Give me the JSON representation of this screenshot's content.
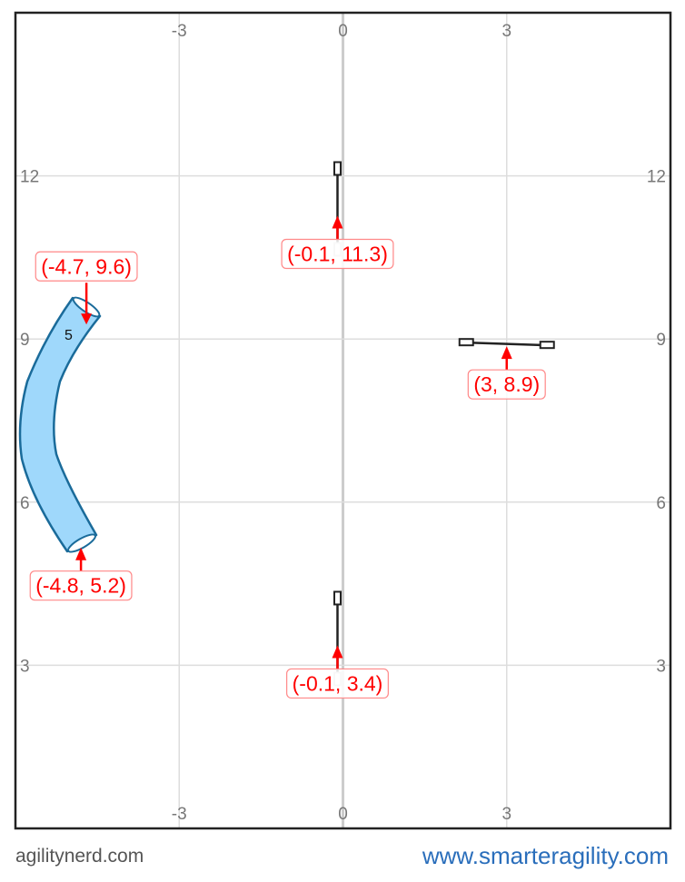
{
  "course": {
    "x_range": [
      -6,
      6
    ],
    "y_range": [
      0,
      15
    ],
    "grid_x": [
      -3,
      0,
      3
    ],
    "grid_y": [
      3,
      6,
      9,
      12
    ],
    "x_tick_labels": [
      "-3",
      "0",
      "3"
    ],
    "y_tick_labels": [
      "3",
      "6",
      "9",
      "12"
    ],
    "jumps": [
      {
        "x": -0.1,
        "y": 11.3,
        "orientation": "vertical",
        "label": "(-0.1, 11.3)"
      },
      {
        "x": 3,
        "y": 8.9,
        "orientation": "horizontal",
        "label": "(3, 8.9)"
      },
      {
        "x": -0.1,
        "y": 3.4,
        "orientation": "vertical",
        "label": "(-0.1, 3.4)"
      }
    ],
    "tunnel": {
      "number": "5",
      "ends": [
        {
          "x": -4.7,
          "y": 9.6,
          "label": "(-4.7, 9.6)"
        },
        {
          "x": -4.8,
          "y": 5.2,
          "label": "(-4.8, 5.2)"
        }
      ],
      "fill": "#9fd8fb",
      "stroke": "#1a6b9a"
    },
    "label_color": "#ff0000"
  },
  "footer": {
    "left": "agilitynerd.com",
    "right": "www.smarteragility.com"
  }
}
